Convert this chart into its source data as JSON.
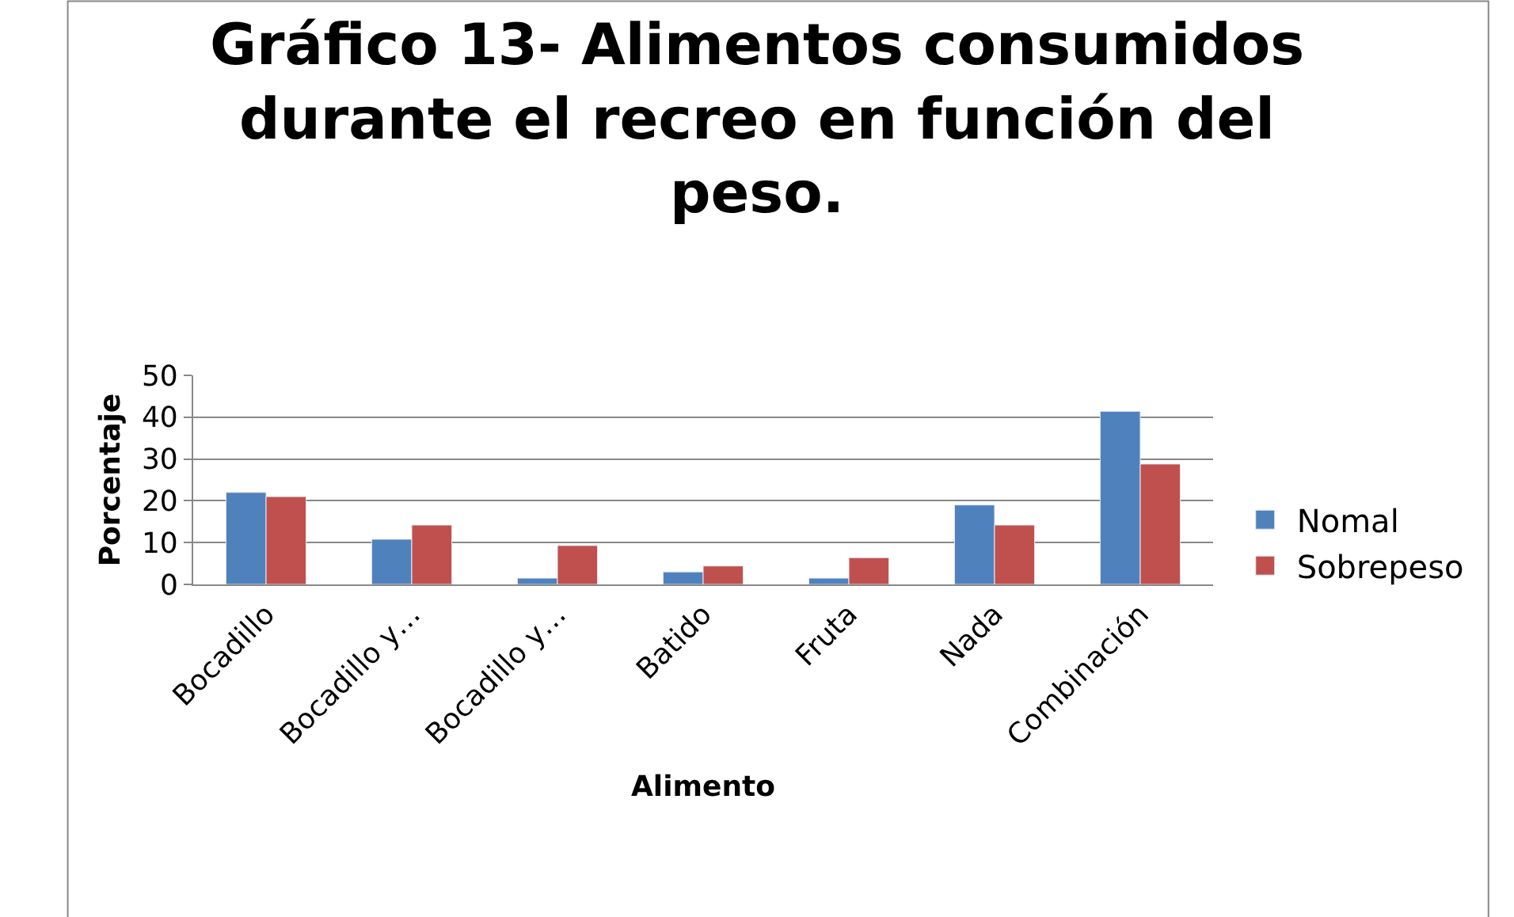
{
  "chart_data": {
    "type": "bar",
    "title": "Gráfico 13- Alimentos consumidos durante el recreo en función del peso.",
    "xlabel": "Alimento",
    "ylabel": "Porcentaje",
    "categories": [
      "Bocadillo",
      "Bocadillo y…",
      "Bocadillo y…",
      "Batido",
      "Fruta",
      "Nada",
      "Combinación"
    ],
    "series": [
      {
        "name": "Nomal",
        "color": "#4f81bd",
        "values": [
          22,
          10.8,
          1.5,
          3,
          1.5,
          19,
          41.4
        ]
      },
      {
        "name": "Sobrepeso",
        "color": "#c0504d",
        "values": [
          21,
          14.2,
          9.3,
          4.4,
          6.4,
          14.2,
          28.8
        ]
      }
    ],
    "ylim": [
      0,
      50
    ],
    "yticks": [
      0,
      10,
      20,
      30,
      40,
      50
    ],
    "grid": "y",
    "legend": "right"
  }
}
